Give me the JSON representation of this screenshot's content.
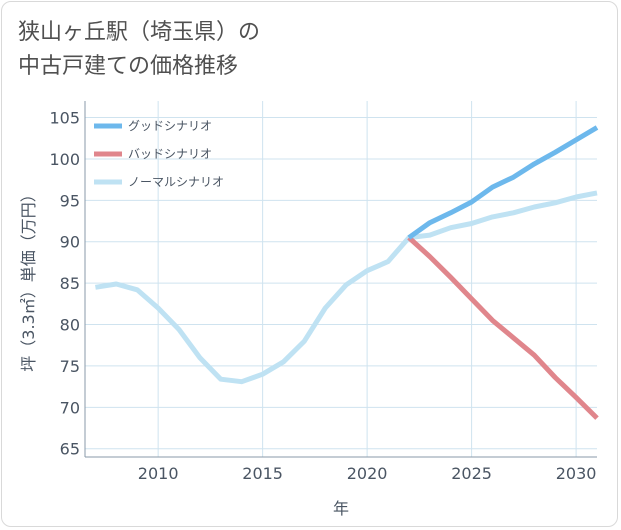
{
  "title": {
    "line1": "狭山ヶ丘駅（埼玉県）の",
    "line2": "中古戸建ての価格推移"
  },
  "chart_data": {
    "type": "line",
    "xlabel": "年",
    "ylabel": "坪（3.3㎡）単価（万円）",
    "xlim": [
      2006.5,
      2031
    ],
    "ylim": [
      64,
      107
    ],
    "x_ticks": [
      2010,
      2015,
      2020,
      2025,
      2030
    ],
    "y_ticks": [
      65,
      70,
      75,
      80,
      85,
      90,
      95,
      100,
      105
    ],
    "grid": true,
    "legend_position": "top-left",
    "series": [
      {
        "name": "グッドシナリオ",
        "color": "#6db8ec",
        "x": [
          2022,
          2023,
          2024,
          2025,
          2026,
          2027,
          2028,
          2029,
          2030,
          2031
        ],
        "y": [
          90.5,
          92.3,
          93.5,
          94.8,
          96.6,
          97.8,
          99.4,
          100.8,
          102.3,
          103.8
        ]
      },
      {
        "name": "バッドシナリオ",
        "color": "#e0868c",
        "x": [
          2022,
          2023,
          2024,
          2025,
          2026,
          2027,
          2028,
          2029,
          2030,
          2031
        ],
        "y": [
          90.5,
          88.2,
          85.7,
          83.1,
          80.5,
          78.4,
          76.3,
          73.6,
          71.2,
          68.7
        ]
      },
      {
        "name": "ノーマルシナリオ",
        "color": "#bfe2f3",
        "x": [
          2007,
          2008,
          2009,
          2010,
          2011,
          2012,
          2013,
          2014,
          2015,
          2016,
          2017,
          2018,
          2019,
          2020,
          2021,
          2022,
          2023,
          2024,
          2025,
          2026,
          2027,
          2028,
          2029,
          2030,
          2031
        ],
        "y": [
          84.5,
          84.9,
          84.2,
          82.0,
          79.4,
          76.0,
          73.4,
          73.1,
          74.0,
          75.5,
          78.0,
          82.0,
          84.8,
          86.5,
          87.6,
          90.5,
          90.8,
          91.7,
          92.2,
          93.0,
          93.5,
          94.2,
          94.7,
          95.4,
          95.9
        ]
      }
    ]
  }
}
